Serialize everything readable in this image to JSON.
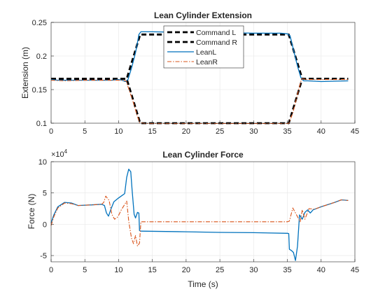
{
  "chart_data": [
    {
      "type": "line",
      "title": "Lean Cylinder Extension",
      "xlabel": "",
      "ylabel": "Extension (m)",
      "xlim": [
        0,
        45
      ],
      "ylim": [
        0.1,
        0.25
      ],
      "xticks": [
        "0",
        "5",
        "10",
        "15",
        "20",
        "25",
        "30",
        "35",
        "40",
        "45"
      ],
      "yticks": [
        "0.1",
        "0.15",
        "0.2",
        "0.25"
      ],
      "grid": true,
      "legend": "inside-top-center",
      "series": [
        {
          "name": "Command L",
          "color": "#000000",
          "style": "dashed",
          "points": [
            [
              0,
              0.166
            ],
            [
              11.2,
              0.166
            ],
            [
              13.2,
              0.232
            ],
            [
              35.2,
              0.232
            ],
            [
              37.2,
              0.166
            ],
            [
              44,
              0.166
            ]
          ]
        },
        {
          "name": "Command R",
          "color": "#000000",
          "style": "dashed",
          "points": [
            [
              0,
              0.166
            ],
            [
              11.2,
              0.166
            ],
            [
              13.2,
              0.1
            ],
            [
              35.2,
              0.1
            ],
            [
              37.2,
              0.166
            ],
            [
              44,
              0.166
            ]
          ]
        },
        {
          "name": "LeanL",
          "color": "#0072BD",
          "style": "solid",
          "points": [
            [
              0,
              0.165
            ],
            [
              1,
              0.164
            ],
            [
              3,
              0.164
            ],
            [
              6,
              0.164
            ],
            [
              9,
              0.164
            ],
            [
              10,
              0.165
            ],
            [
              10.5,
              0.164
            ],
            [
              11,
              0.162
            ],
            [
              11.4,
              0.165
            ],
            [
              12,
              0.185
            ],
            [
              12.5,
              0.205
            ],
            [
              12.8,
              0.22
            ],
            [
              13,
              0.232
            ],
            [
              13.3,
              0.236
            ],
            [
              15,
              0.236
            ],
            [
              20,
              0.235
            ],
            [
              25,
              0.235
            ],
            [
              30,
              0.234
            ],
            [
              34,
              0.234
            ],
            [
              35,
              0.233
            ],
            [
              35.4,
              0.23
            ],
            [
              36,
              0.205
            ],
            [
              36.5,
              0.185
            ],
            [
              37,
              0.168
            ],
            [
              37.4,
              0.163
            ],
            [
              38,
              0.163
            ],
            [
              40,
              0.162
            ],
            [
              44,
              0.163
            ]
          ]
        },
        {
          "name": "LeanR",
          "color": "#D95319",
          "style": "dashdot",
          "points": [
            [
              0,
              0.164
            ],
            [
              2,
              0.163
            ],
            [
              5,
              0.164
            ],
            [
              9,
              0.164
            ],
            [
              10.5,
              0.164
            ],
            [
              11.1,
              0.163
            ],
            [
              11.6,
              0.148
            ],
            [
              12.2,
              0.13
            ],
            [
              12.7,
              0.113
            ],
            [
              13.1,
              0.101
            ],
            [
              14,
              0.0995
            ],
            [
              20,
              0.0995
            ],
            [
              25,
              0.0995
            ],
            [
              30,
              0.0995
            ],
            [
              35.2,
              0.0995
            ],
            [
              35.8,
              0.115
            ],
            [
              36.3,
              0.135
            ],
            [
              36.8,
              0.155
            ],
            [
              37.1,
              0.166
            ],
            [
              38,
              0.165
            ],
            [
              41,
              0.165
            ],
            [
              44,
              0.165
            ]
          ]
        }
      ]
    },
    {
      "type": "line",
      "title": "Lean Cylinder Force",
      "xlabel": "Time (s)",
      "ylabel": "Force (N)",
      "exponent_label": "×10",
      "exponent_power": "4",
      "xlim": [
        0,
        45
      ],
      "ylim": [
        -6,
        10
      ],
      "xticks": [
        "0",
        "5",
        "10",
        "15",
        "20",
        "25",
        "30",
        "35",
        "40",
        "45"
      ],
      "yticks": [
        "-5",
        "0",
        "5",
        "10"
      ],
      "grid": true,
      "series": [
        {
          "name": "LeanL",
          "color": "#0072BD",
          "style": "solid",
          "points": [
            [
              0,
              0.2
            ],
            [
              0.4,
              1.5
            ],
            [
              1,
              2.8
            ],
            [
              2,
              3.5
            ],
            [
              3,
              3.4
            ],
            [
              4,
              3.0
            ],
            [
              6,
              3.1
            ],
            [
              7.5,
              3.2
            ],
            [
              7.9,
              3.0
            ],
            [
              8.2,
              1.8
            ],
            [
              8.5,
              1.3
            ],
            [
              8.9,
              2.5
            ],
            [
              9.3,
              3.6
            ],
            [
              10,
              4.2
            ],
            [
              10.5,
              4.6
            ],
            [
              10.9,
              4.9
            ],
            [
              11.2,
              7.5
            ],
            [
              11.5,
              8.8
            ],
            [
              11.8,
              8.4
            ],
            [
              12.0,
              5.5
            ],
            [
              12.3,
              1.6
            ],
            [
              12.5,
              1.0
            ],
            [
              12.8,
              1.9
            ],
            [
              13.0,
              1.8
            ],
            [
              13.1,
              -1.0
            ],
            [
              13.3,
              -1.1
            ],
            [
              20,
              -1.2
            ],
            [
              25,
              -1.3
            ],
            [
              30,
              -1.35
            ],
            [
              35,
              -1.45
            ],
            [
              35.2,
              -1.5
            ],
            [
              35.3,
              -4.0
            ],
            [
              35.6,
              -4.2
            ],
            [
              35.9,
              -4.5
            ],
            [
              36.2,
              -5.8
            ],
            [
              36.5,
              -3.5
            ],
            [
              36.8,
              1.5
            ],
            [
              37.2,
              0.8
            ],
            [
              37.6,
              1.9
            ],
            [
              38.0,
              2.3
            ],
            [
              38.4,
              1.8
            ],
            [
              38.8,
              2.3
            ],
            [
              40,
              2.8
            ],
            [
              42,
              3.5
            ],
            [
              43,
              3.9
            ],
            [
              44,
              3.8
            ]
          ]
        },
        {
          "name": "LeanR",
          "color": "#D95319",
          "style": "dashdot",
          "points": [
            [
              0,
              -0.2
            ],
            [
              0.4,
              1.2
            ],
            [
              1,
              2.6
            ],
            [
              2,
              3.4
            ],
            [
              3,
              3.3
            ],
            [
              4,
              3.0
            ],
            [
              6,
              3.1
            ],
            [
              7.5,
              3.2
            ],
            [
              7.8,
              3.5
            ],
            [
              8.1,
              4.5
            ],
            [
              8.6,
              3.8
            ],
            [
              9.0,
              1.6
            ],
            [
              9.4,
              0.8
            ],
            [
              9.9,
              1.2
            ],
            [
              10.4,
              2.3
            ],
            [
              10.8,
              3.0
            ],
            [
              11.2,
              3.7
            ],
            [
              11.5,
              0.5
            ],
            [
              11.9,
              -2.2
            ],
            [
              12.2,
              -3.1
            ],
            [
              12.5,
              -1.8
            ],
            [
              12.8,
              -3.5
            ],
            [
              13.1,
              -3.0
            ],
            [
              13.3,
              0.4
            ],
            [
              14,
              0.4
            ],
            [
              20,
              0.4
            ],
            [
              25,
              0.4
            ],
            [
              30,
              0.4
            ],
            [
              35,
              0.4
            ],
            [
              35.3,
              0.5
            ],
            [
              35.8,
              2.6
            ],
            [
              36.4,
              1.4
            ],
            [
              36.9,
              0.4
            ],
            [
              37.2,
              2.3
            ],
            [
              37.6,
              0.8
            ],
            [
              38.2,
              2.5
            ],
            [
              39,
              2.4
            ],
            [
              40,
              2.8
            ],
            [
              42,
              3.5
            ],
            [
              43,
              3.9
            ],
            [
              44,
              3.8
            ]
          ]
        }
      ]
    }
  ]
}
